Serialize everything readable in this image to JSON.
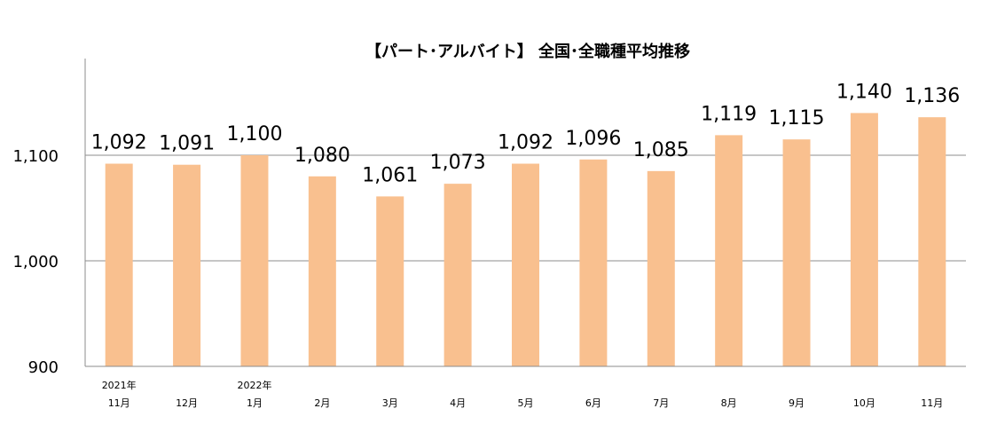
{
  "chart_data": {
    "type": "bar",
    "title": "【パート･アルバイト】 全国･全職種平均推移",
    "categories": [
      [
        "2021年",
        "11月"
      ],
      [
        "",
        "12月"
      ],
      [
        "2022年",
        "1月"
      ],
      [
        "",
        "2月"
      ],
      [
        "",
        "3月"
      ],
      [
        "",
        "4月"
      ],
      [
        "",
        "5月"
      ],
      [
        "",
        "6月"
      ],
      [
        "",
        "7月"
      ],
      [
        "",
        "8月"
      ],
      [
        "",
        "9月"
      ],
      [
        "",
        "10月"
      ],
      [
        "",
        "11月"
      ]
    ],
    "values": [
      1092,
      1091,
      1100,
      1080,
      1061,
      1073,
      1092,
      1096,
      1085,
      1119,
      1115,
      1140,
      1136
    ],
    "data_labels": [
      "1,092",
      "1,091",
      "1,100",
      "1,080",
      "1,061",
      "1,073",
      "1,092",
      "1,096",
      "1,085",
      "1,119",
      "1,115",
      "1,140",
      "1,136"
    ],
    "ylim": [
      900,
      1200
    ],
    "yticks": [
      900,
      1000,
      1100
    ],
    "ytick_labels": [
      "900",
      "1,000",
      "1,100"
    ],
    "grid": true,
    "colors": {
      "bar": "#F9C08F",
      "grid": "#8C8C8C",
      "axis": "#8C8C8C"
    }
  }
}
